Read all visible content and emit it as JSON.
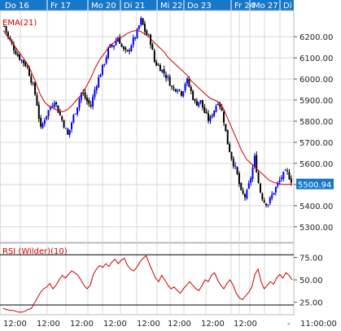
{
  "chart_data": [
    {
      "type": "candlestick",
      "indicator_label": "EMA(21)",
      "current_value_label": "5500.94",
      "ylim": [
        5230,
        6320
      ],
      "y_ticks": [
        "6200.00",
        "6100.00",
        "6000.00",
        "5900.00",
        "5800.00",
        "5700.00",
        "5600.00",
        "5500.00",
        "5400.00",
        "5300.00"
      ],
      "y_tick_values": [
        6200,
        6100,
        6000,
        5900,
        5800,
        5700,
        5600,
        5500,
        5400,
        5300
      ],
      "day_labels": [
        "Do 16",
        "Fr 17",
        "Mo 20",
        "Di 21",
        "Mi 22",
        "Do 23",
        "Fr 24",
        "Mo 27",
        "Di"
      ],
      "x_ticks": [
        "12:00",
        "12:00",
        "12:00",
        "12:00",
        "12:00",
        "12:00",
        "12:00",
        "12:00",
        "-",
        "11:00:00"
      ],
      "grid": true,
      "colors": {
        "up": "#0000ff",
        "down": "#000000",
        "ema": "#cc0000",
        "day_bar": "#1878c8",
        "grid": "#d8d8d8"
      },
      "close_path": [
        6250,
        6190,
        6150,
        6110,
        6085,
        6060,
        5990,
        5910,
        5760,
        5820,
        5860,
        5900,
        5840,
        5790,
        5730,
        5810,
        5870,
        5940,
        5900,
        5870,
        5960,
        6020,
        6080,
        6150,
        6160,
        6200,
        6140,
        6120,
        6170,
        6210,
        6280,
        6220,
        6190,
        6080,
        6060,
        6030,
        6000,
        5950,
        5960,
        5930,
        6000,
        5940,
        5880,
        5900,
        5840,
        5800,
        5850,
        5900,
        5830,
        5700,
        5620,
        5560,
        5460,
        5440,
        5520,
        5630,
        5480,
        5420,
        5410,
        5460,
        5500,
        5540,
        5560,
        5520
      ],
      "ema_path": [
        6230,
        6200,
        6170,
        6140,
        6110,
        6080,
        6040,
        5990,
        5930,
        5890,
        5870,
        5860,
        5850,
        5845,
        5855,
        5875,
        5900,
        5925,
        5960,
        6000,
        6050,
        6090,
        6120,
        6150,
        6170,
        6190,
        6200,
        6215,
        6225,
        6230,
        6225,
        6210,
        6195,
        6170,
        6150,
        6130,
        6100,
        6080,
        6060,
        6040,
        6020,
        5990,
        5970,
        5950,
        5930,
        5910,
        5900,
        5890,
        5860,
        5810,
        5760,
        5710,
        5660,
        5620,
        5600,
        5580,
        5560,
        5540,
        5520,
        5510,
        5505,
        5500,
        5501,
        5501
      ]
    },
    {
      "type": "line",
      "indicator_label": "RSI (Wilder)(10)",
      "ylim": [
        12,
        90
      ],
      "y_ticks": [
        "75.00",
        "50.00",
        "25.00"
      ],
      "y_tick_values": [
        75,
        50,
        25
      ],
      "reference_lines": [
        78,
        22
      ],
      "colors": {
        "line": "#cc0000",
        "reference": "#000000"
      },
      "values": [
        18,
        17,
        16,
        16,
        15,
        14,
        14,
        15,
        17,
        18,
        24,
        30,
        36,
        40,
        42,
        46,
        40,
        44,
        50,
        55,
        52,
        56,
        60,
        58,
        55,
        50,
        44,
        40,
        44,
        56,
        62,
        66,
        64,
        68,
        65,
        70,
        73,
        68,
        72,
        74,
        66,
        62,
        60,
        64,
        70,
        74,
        77,
        68,
        60,
        52,
        48,
        55,
        50,
        44,
        40,
        42,
        38,
        35,
        40,
        44,
        48,
        44,
        40,
        38,
        44,
        50,
        48,
        55,
        58,
        50,
        44,
        40,
        46,
        50,
        44,
        35,
        30,
        28,
        32,
        36,
        42,
        56,
        62,
        48,
        40,
        44,
        48,
        45,
        52,
        56,
        52,
        58,
        55,
        50
      ]
    }
  ]
}
